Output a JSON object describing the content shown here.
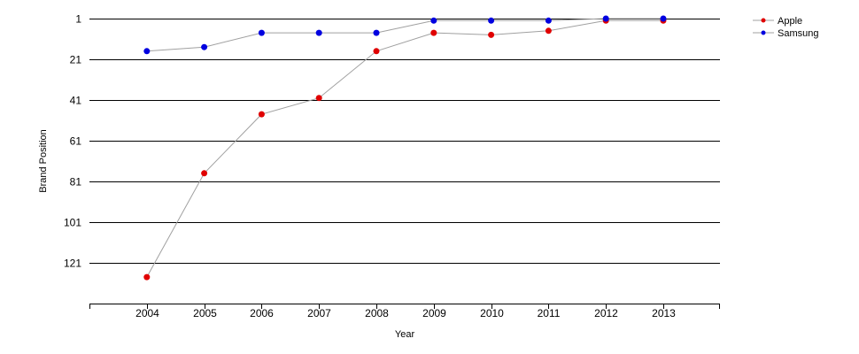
{
  "chart_data": {
    "type": "line",
    "title": "",
    "xlabel": "Year",
    "ylabel": "Brand Position",
    "x": [
      "2004",
      "2005",
      "2006",
      "2007",
      "2008",
      "2009",
      "2010",
      "2011",
      "2012",
      "2013"
    ],
    "y_ticks": [
      "1",
      "21",
      "41",
      "61",
      "81",
      "101",
      "121"
    ],
    "ylim": [
      1,
      141
    ],
    "y_inverted": true,
    "grid": "horizontal",
    "legend_position": "top-right",
    "series": [
      {
        "name": "Apple",
        "color": "#e00000",
        "values": [
          128,
          77,
          48,
          40,
          17,
          8,
          9,
          7,
          2,
          2
        ]
      },
      {
        "name": "Samsung",
        "color": "#0000e0",
        "values": [
          17,
          15,
          8,
          8,
          8,
          2,
          2,
          2,
          1,
          1
        ]
      }
    ],
    "line_color": "#a0a0a0"
  }
}
